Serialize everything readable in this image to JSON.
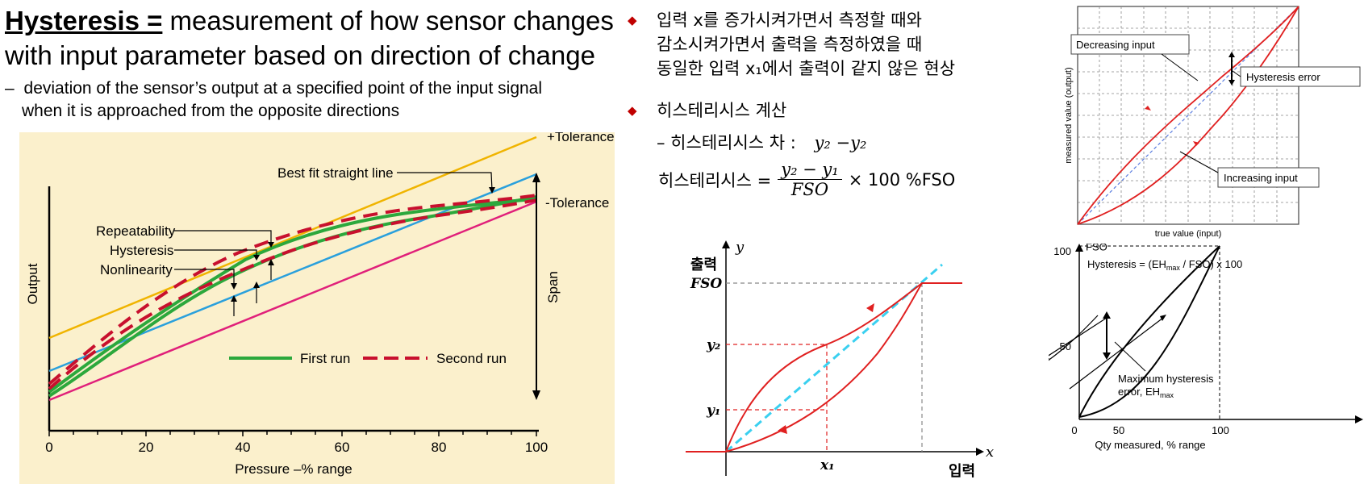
{
  "header": {
    "title_keyword": "Hysteresis =",
    "title_rest_line1": " measurement of how sensor changes",
    "title_line2": "with input parameter based on direction of change",
    "subtitle_dash": "–",
    "subtitle_line1": "deviation of the sensor’s output at a specified point of the input signal",
    "subtitle_line2": "when it is approached from the opposite directions"
  },
  "chart1": {
    "labels": {
      "tol_plus": "+Tolerance",
      "tol_minus": "-Tolerance",
      "best_fit": "Best fit straight line",
      "repeatability": "Repeatability",
      "hysteresis": "Hysteresis",
      "nonlinearity": "Nonlinearity",
      "span": "Span",
      "first_run": "First run",
      "second_run": "Second run",
      "ylabel": "Output",
      "xlabel": "Pressure –% range"
    },
    "x_ticks": [
      "0",
      "20",
      "40",
      "60",
      "80",
      "100"
    ],
    "colors": {
      "background": "#fbf0cc",
      "tolerance": "#f0b400",
      "best_fit": "#2aa0dc",
      "lower": "#e0207a",
      "first_run": "#2ca83c",
      "second_run": "#c8102e"
    }
  },
  "korean": {
    "bullet1_line1": "입력 x를 증가시켜가면서 측정할 때와",
    "bullet1_line2": "감소시켜가면서 출력을 측정하였을 때",
    "bullet1_line3": "동일한 입력 x₁에서 출력이 같지 않은 현상",
    "bullet2": "히스테리시스 계산",
    "diff_label": "– 히스테리시스 차 :",
    "diff_expr": "y₂ −y₂",
    "formula_lhs": "히스테리시스 =",
    "formula_num": "y₂ − y₁",
    "formula_den": "FSO",
    "formula_rhs": "× 100 %FSO"
  },
  "chart2": {
    "y_axis": "y",
    "x_axis": "x",
    "y_word": "출력",
    "x_word": "입력",
    "fso": "FSO",
    "y2": "y₂",
    "y1": "y₁",
    "x1": "x₁"
  },
  "chart3": {
    "decreasing": "Decreasing input",
    "error": "Hysteresis error",
    "increasing": "Increasing input",
    "ylabel": "measured value (output)",
    "xlabel": "true value (input)"
  },
  "chart4": {
    "fso": "FSO",
    "formula": "Hysteresis = (EHmax / FSO) x 100",
    "annot_line1": "Maximum hysteresis",
    "annot_line2": "error, EHmax",
    "y_ticks": [
      "100",
      "50"
    ],
    "x_ticks": [
      "0",
      "50",
      "100"
    ],
    "xlabel": "Qty measured, % range"
  }
}
